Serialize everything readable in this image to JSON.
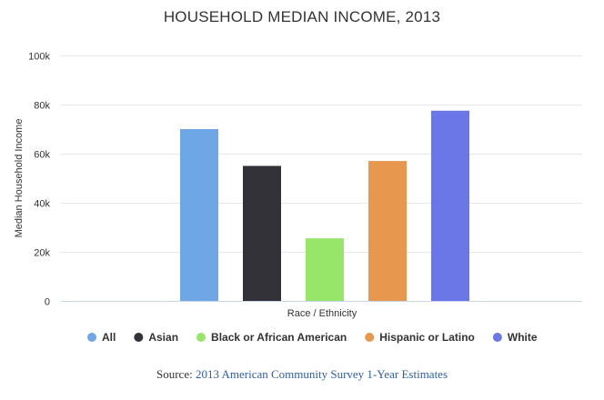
{
  "chart_data": {
    "type": "bar",
    "title": "HOUSEHOLD MEDIAN INCOME, 2013",
    "xlabel": "Race / Ethnicity",
    "ylabel": "Median Household Income",
    "ylim": [
      0,
      100000
    ],
    "yticks": [
      0,
      20000,
      40000,
      60000,
      80000,
      100000
    ],
    "ytick_labels": [
      "0",
      "20k",
      "40k",
      "60k",
      "80k",
      "100k"
    ],
    "grid": true,
    "legend_position": "bottom",
    "series": [
      {
        "name": "All",
        "value": 70000,
        "color": "#6fa6e6"
      },
      {
        "name": "Asian",
        "value": 55000,
        "color": "#323238"
      },
      {
        "name": "Black or African American",
        "value": 25500,
        "color": "#97e66a"
      },
      {
        "name": "Hispanic or Latino",
        "value": 57000,
        "color": "#e8974f"
      },
      {
        "name": "White",
        "value": 77500,
        "color": "#6b77e6"
      }
    ]
  },
  "source": {
    "prefix": "Source: ",
    "link_text": "2013 American Community Survey 1-Year Estimates"
  }
}
